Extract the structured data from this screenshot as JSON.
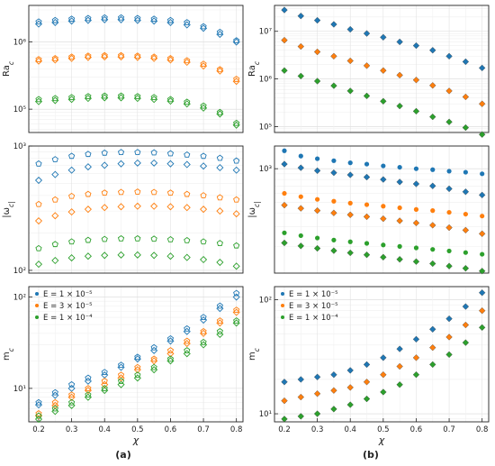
{
  "figure": {
    "panel_labels": [
      "(a)",
      "(b)"
    ],
    "xlabel": "χ",
    "colors": {
      "E1": "#1f77b4",
      "E2": "#ff7f0e",
      "E3": "#2ca02c"
    },
    "legend": [
      "E = 1 × 10⁻⁵",
      "E = 3 × 10⁻⁵",
      "E = 1 × 10⁻⁴"
    ]
  },
  "chart_data": [
    {
      "id": "a_top",
      "type": "scatter",
      "ylabel": "Ra_c",
      "yscale": "log",
      "xlim": [
        0.17,
        0.82
      ],
      "ylim": [
        45000,
        3500000
      ],
      "xticks": [],
      "yticks": [
        {
          "v": 100000,
          "label": "10⁵"
        },
        {
          "v": 1000000,
          "label": "10⁶"
        }
      ],
      "x": [
        0.2,
        0.25,
        0.3,
        0.35,
        0.4,
        0.45,
        0.5,
        0.55,
        0.6,
        0.65,
        0.7,
        0.75,
        0.8
      ],
      "series": [
        {
          "color": "E1",
          "marker": "pentagon",
          "values": [
            2000000,
            2100000,
            2200000,
            2250000,
            2300000,
            2300000,
            2250000,
            2200000,
            2100000,
            1950000,
            1700000,
            1400000,
            1050000
          ]
        },
        {
          "color": "E1",
          "marker": "diamond-open",
          "values": [
            1850000,
            1950000,
            2050000,
            2100000,
            2150000,
            2150000,
            2100000,
            2050000,
            1950000,
            1800000,
            1600000,
            1300000,
            1000000
          ]
        },
        {
          "color": "E2",
          "marker": "pentagon",
          "values": [
            550000,
            570000,
            600000,
            620000,
            630000,
            630000,
            620000,
            600000,
            570000,
            530000,
            470000,
            390000,
            280000
          ]
        },
        {
          "color": "E2",
          "marker": "diamond-open",
          "values": [
            520000,
            540000,
            570000,
            590000,
            600000,
            600000,
            590000,
            570000,
            540000,
            500000,
            440000,
            370000,
            260000
          ]
        },
        {
          "color": "E3",
          "marker": "pentagon",
          "values": [
            140000,
            145000,
            150000,
            155000,
            158000,
            158000,
            155000,
            150000,
            140000,
            128000,
            112000,
            90000,
            62000
          ]
        },
        {
          "color": "E3",
          "marker": "diamond-open",
          "values": [
            130000,
            135000,
            140000,
            145000,
            148000,
            148000,
            145000,
            140000,
            132000,
            120000,
            104000,
            85000,
            58000
          ]
        }
      ]
    },
    {
      "id": "a_mid",
      "type": "scatter",
      "ylabel": "|ω_c|",
      "yscale": "log",
      "xlim": [
        0.17,
        0.82
      ],
      "ylim": [
        95,
        1000
      ],
      "xticks": [],
      "yticks": [
        {
          "v": 100,
          "label": "10²"
        },
        {
          "v": 1000,
          "label": "10³"
        }
      ],
      "x": [
        0.2,
        0.25,
        0.3,
        0.35,
        0.4,
        0.45,
        0.5,
        0.55,
        0.6,
        0.65,
        0.7,
        0.75,
        0.8
      ],
      "series": [
        {
          "color": "E1",
          "marker": "pentagon",
          "values": [
            720,
            780,
            830,
            860,
            880,
            890,
            890,
            885,
            870,
            850,
            830,
            800,
            760
          ]
        },
        {
          "color": "E1",
          "marker": "diamond-open",
          "values": [
            530,
            590,
            640,
            680,
            700,
            720,
            730,
            730,
            720,
            710,
            690,
            670,
            640
          ]
        },
        {
          "color": "E2",
          "marker": "pentagon",
          "values": [
            340,
            370,
            395,
            410,
            420,
            425,
            428,
            425,
            420,
            410,
            400,
            385,
            370
          ]
        },
        {
          "color": "E2",
          "marker": "diamond-open",
          "values": [
            250,
            275,
            295,
            310,
            320,
            325,
            328,
            328,
            325,
            320,
            310,
            300,
            285
          ]
        },
        {
          "color": "E3",
          "marker": "pentagon",
          "values": [
            150,
            162,
            170,
            175,
            178,
            180,
            180,
            179,
            177,
            174,
            170,
            165,
            158
          ]
        },
        {
          "color": "E3",
          "marker": "diamond-open",
          "values": [
            112,
            120,
            126,
            130,
            132,
            133,
            133,
            132,
            130,
            127,
            122,
            116,
            108
          ]
        }
      ]
    },
    {
      "id": "a_bot",
      "type": "scatter",
      "ylabel": "m_c",
      "yscale": "log",
      "xlim": [
        0.17,
        0.82
      ],
      "ylim": [
        4.3,
        130
      ],
      "xticks": [
        0.2,
        0.3,
        0.4,
        0.5,
        0.6,
        0.7,
        0.8
      ],
      "yticks": [
        {
          "v": 10,
          "label": "10¹"
        },
        {
          "v": 100,
          "label": "10²"
        }
      ],
      "x": [
        0.2,
        0.25,
        0.3,
        0.35,
        0.4,
        0.45,
        0.5,
        0.55,
        0.6,
        0.65,
        0.7,
        0.75,
        0.8
      ],
      "series": [
        {
          "color": "E1",
          "marker": "pentagon",
          "values": [
            7,
            9,
            11,
            13,
            15,
            18,
            22,
            28,
            35,
            45,
            60,
            80,
            110
          ]
        },
        {
          "color": "E1",
          "marker": "diamond-open",
          "values": [
            6.6,
            8.4,
            10,
            12,
            14,
            17,
            21,
            26,
            33,
            42,
            56,
            75,
            100
          ]
        },
        {
          "color": "E2",
          "marker": "pentagon",
          "values": [
            5.3,
            7,
            8.5,
            10,
            12,
            14,
            17,
            21,
            26,
            33,
            42,
            55,
            72
          ]
        },
        {
          "color": "E2",
          "marker": "diamond-open",
          "values": [
            5,
            6.5,
            8,
            9.5,
            11,
            13,
            16,
            20,
            24,
            31,
            40,
            52,
            68
          ]
        },
        {
          "color": "E3",
          "marker": "pentagon",
          "values": [
            5,
            6,
            7,
            8.5,
            10,
            12,
            14,
            17,
            21,
            26,
            32,
            42,
            55
          ]
        },
        {
          "color": "E3",
          "marker": "diamond-open",
          "values": [
            4.6,
            5.6,
            6.5,
            8,
            9.5,
            11,
            13,
            16,
            20,
            24,
            30,
            39,
            52
          ]
        }
      ]
    },
    {
      "id": "b_top",
      "type": "scatter",
      "ylabel": "Ra_c",
      "yscale": "log",
      "xlim": [
        0.17,
        0.82
      ],
      "ylim": [
        75000,
        35000000
      ],
      "xticks": [],
      "yticks": [
        {
          "v": 100000,
          "label": "10⁵"
        },
        {
          "v": 1000000,
          "label": "10⁶"
        },
        {
          "v": 10000000,
          "label": "10⁷"
        }
      ],
      "x": [
        0.2,
        0.25,
        0.3,
        0.35,
        0.4,
        0.45,
        0.5,
        0.55,
        0.6,
        0.65,
        0.7,
        0.75,
        0.8
      ],
      "series": [
        {
          "color": "E1",
          "marker": "diamond-filled",
          "values": [
            28000000,
            21000000,
            17000000,
            14000000,
            11000000,
            9000000,
            7500000,
            6000000,
            5000000,
            4000000,
            3000000,
            2300000,
            1700000
          ]
        },
        {
          "color": "E2",
          "marker": "diamond-filled",
          "values": [
            6500000,
            4800000,
            3700000,
            3000000,
            2400000,
            1900000,
            1500000,
            1200000,
            950000,
            730000,
            560000,
            420000,
            300000
          ]
        },
        {
          "color": "E3",
          "marker": "diamond-filled",
          "values": [
            1500000,
            1150000,
            900000,
            720000,
            560000,
            440000,
            340000,
            270000,
            210000,
            160000,
            125000,
            95000,
            68000
          ]
        }
      ]
    },
    {
      "id": "b_mid",
      "type": "scatter",
      "ylabel": "|ω_c|",
      "yscale": "log",
      "xlim": [
        0.17,
        0.82
      ],
      "ylim": [
        115,
        1600
      ],
      "xticks": [],
      "yticks": [
        {
          "v": 1000,
          "label": "10³"
        }
      ],
      "x": [
        0.2,
        0.25,
        0.3,
        0.35,
        0.4,
        0.45,
        0.5,
        0.55,
        0.6,
        0.65,
        0.7,
        0.75,
        0.8
      ],
      "series": [
        {
          "color": "E1",
          "marker": "circle",
          "values": [
            1450,
            1300,
            1230,
            1180,
            1130,
            1100,
            1060,
            1030,
            1000,
            980,
            950,
            930,
            900
          ]
        },
        {
          "color": "E1",
          "marker": "diamond-filled",
          "values": [
            1100,
            1020,
            960,
            920,
            880,
            840,
            800,
            760,
            730,
            700,
            660,
            620,
            580
          ]
        },
        {
          "color": "E2",
          "marker": "circle",
          "values": [
            600,
            560,
            530,
            510,
            490,
            475,
            460,
            445,
            430,
            420,
            405,
            390,
            375
          ]
        },
        {
          "color": "E2",
          "marker": "diamond-filled",
          "values": [
            470,
            440,
            420,
            400,
            385,
            370,
            355,
            340,
            325,
            310,
            295,
            280,
            260
          ]
        },
        {
          "color": "E3",
          "marker": "circle",
          "values": [
            265,
            250,
            238,
            228,
            220,
            213,
            206,
            200,
            194,
            188,
            182,
            176,
            170
          ]
        },
        {
          "color": "E3",
          "marker": "diamond-filled",
          "values": [
            215,
            202,
            192,
            183,
            175,
            168,
            160,
            153,
            146,
            140,
            133,
            127,
            120
          ]
        }
      ]
    },
    {
      "id": "b_bot",
      "type": "scatter",
      "ylabel": "m_c",
      "yscale": "log",
      "xlim": [
        0.17,
        0.82
      ],
      "ylim": [
        8.5,
        130
      ],
      "xticks": [
        0.2,
        0.3,
        0.4,
        0.5,
        0.6,
        0.7,
        0.8
      ],
      "yticks": [
        {
          "v": 10,
          "label": "10¹"
        },
        {
          "v": 100,
          "label": "10²"
        }
      ],
      "x": [
        0.2,
        0.25,
        0.3,
        0.35,
        0.4,
        0.45,
        0.5,
        0.55,
        0.6,
        0.65,
        0.7,
        0.75,
        0.8
      ],
      "series": [
        {
          "color": "E1",
          "marker": "diamond-filled",
          "values": [
            19,
            20,
            21,
            22,
            24,
            27,
            31,
            37,
            45,
            55,
            68,
            87,
            115
          ]
        },
        {
          "color": "E2",
          "marker": "diamond-filled",
          "values": [
            13,
            14,
            15,
            16,
            17,
            19,
            22,
            26,
            31,
            38,
            47,
            60,
            80
          ]
        },
        {
          "color": "E3",
          "marker": "diamond-filled",
          "values": [
            9,
            9.5,
            10,
            11,
            12,
            13.5,
            15.5,
            18,
            22,
            27,
            33,
            42,
            57
          ]
        }
      ]
    }
  ]
}
